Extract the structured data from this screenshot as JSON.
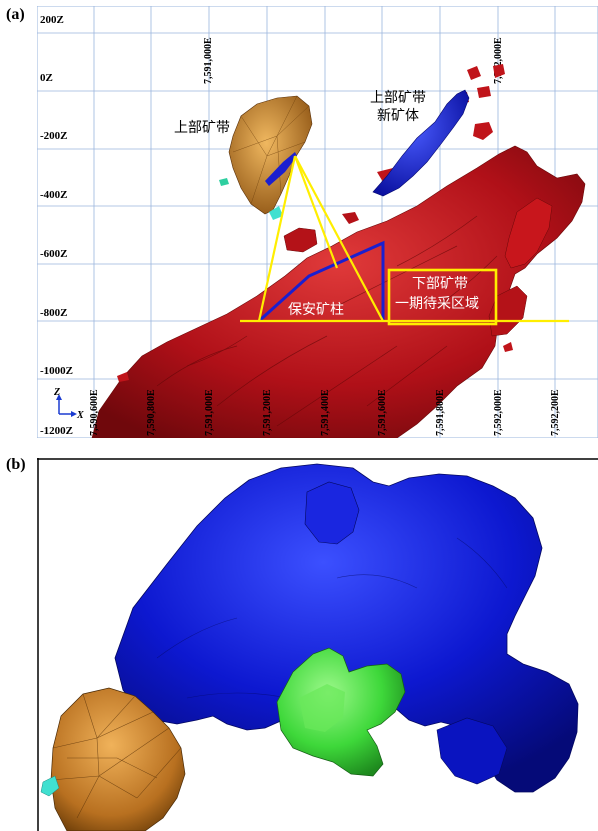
{
  "figure": {
    "panel_a_label": "(a)",
    "panel_b_label": "(b)"
  },
  "panel_a": {
    "elevation_labels": [
      "200Z",
      "0Z",
      "-200Z",
      "-400Z",
      "-600Z",
      "-800Z",
      "-1000Z",
      "-1200Z"
    ],
    "top_northing_labels": [
      "7,591,000E",
      "7,592,000E"
    ],
    "bottom_northing_labels": [
      "7,590,600E",
      "7,590,800E",
      "7,591,000E",
      "7,591,200E",
      "7,591,400E",
      "7,591,600E",
      "7,591,800E",
      "7,592,000E",
      "7,592,200E"
    ],
    "annotations": {
      "upper_zone": "上部矿带",
      "upper_zone_new_line1": "上部矿带",
      "upper_zone_new_line2": "新矿体",
      "safety_pillar": "保安矿柱",
      "lower_zone_line1": "下部矿带",
      "lower_zone_line2": "一期待采区域"
    },
    "axis_indicator": {
      "z": "Z",
      "x": "X"
    },
    "colors": {
      "red_orebody": "#c0141a",
      "blue_orebody": "#1a1fd0",
      "gold_orebody": "#c8862a",
      "highlight": "#ffee00",
      "grid": "#8fb0e0"
    }
  },
  "panel_b": {
    "colors": {
      "blue_orebody": "#0a14c8",
      "green_orebody": "#3ed83a",
      "gold_orebody": "#c07820",
      "cyan_fragment": "#40e0d0"
    }
  }
}
